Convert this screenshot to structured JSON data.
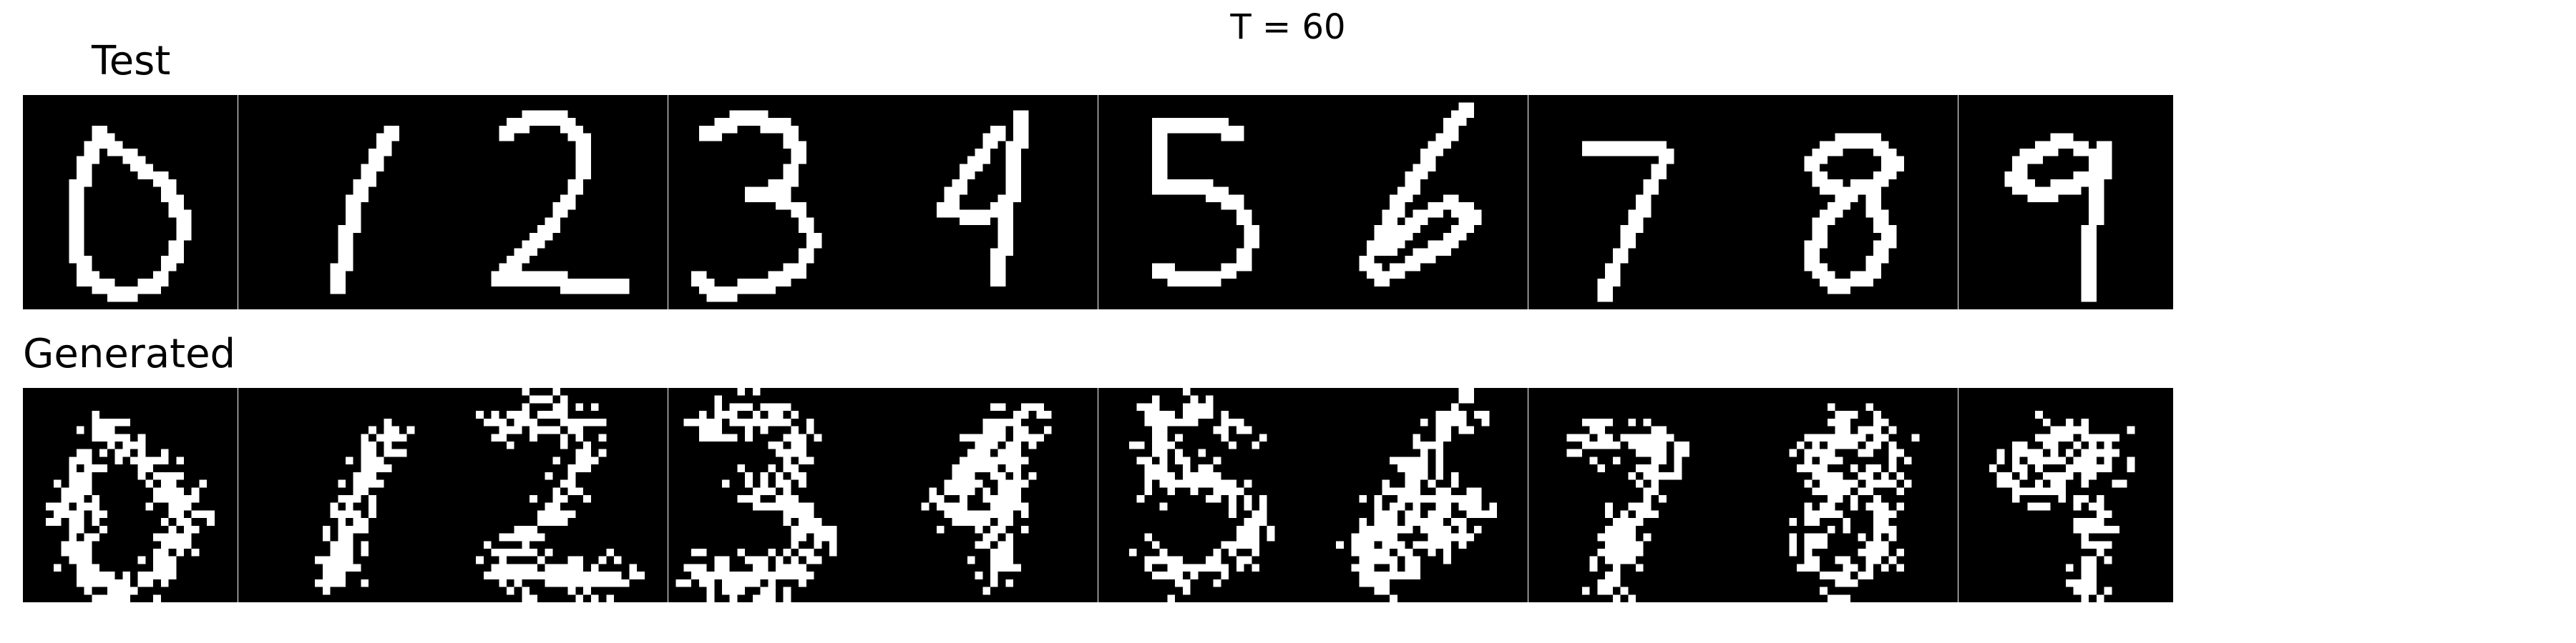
{
  "figure": {
    "title": "T = 60",
    "row_labels": {
      "test": "Test",
      "generated": "Generated"
    },
    "tiles": [
      {
        "digit": 0
      },
      {
        "digit": 1
      },
      {
        "digit": 2
      },
      {
        "digit": 3
      },
      {
        "digit": 4
      },
      {
        "digit": 5
      },
      {
        "digit": 6
      },
      {
        "digit": 7
      },
      {
        "digit": 8
      },
      {
        "digit": 9
      }
    ],
    "pixel_colors": {
      "on": "#ffffff",
      "off": "#000000"
    }
  }
}
